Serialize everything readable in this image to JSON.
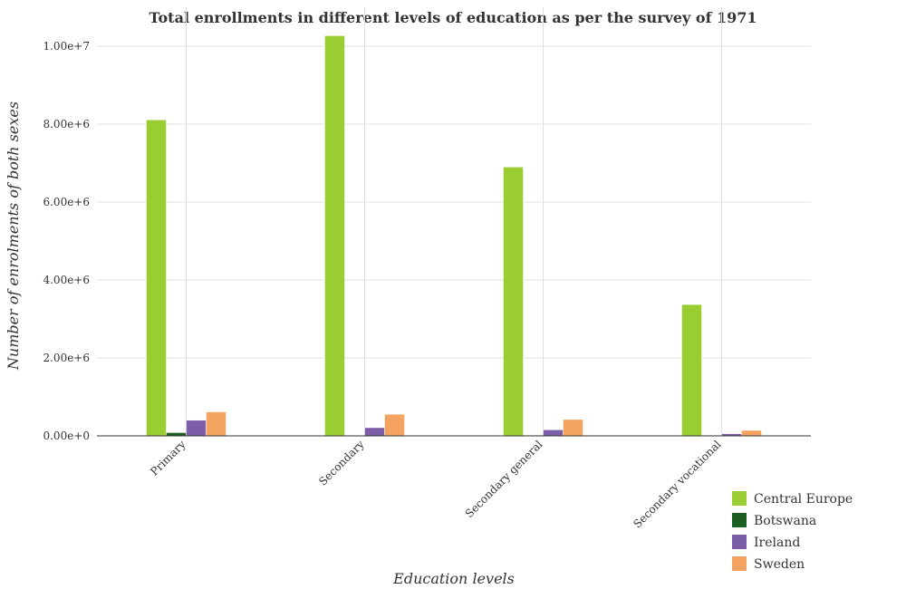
{
  "chart_data": {
    "type": "bar",
    "title": "Total enrollments in different levels of education as per the survey of 1971",
    "xlabel": "Education levels",
    "ylabel": "Number of enrolments of both sexes",
    "categories": [
      "Primary",
      "Secondary",
      "Secondary general",
      "Secondary vocational"
    ],
    "yticks": [
      0,
      2000000,
      4000000,
      6000000,
      8000000,
      10000000
    ],
    "ytick_labels": [
      "0.00e+0",
      "2.00e+6",
      "4.00e+6",
      "6.00e+6",
      "8.00e+6",
      "1.00e+7"
    ],
    "ylim": [
      0,
      11000000
    ],
    "grid": true,
    "legend_position": "bottom-right",
    "series": [
      {
        "name": "Central Europe",
        "color": "#9acd32",
        "values": [
          8110000,
          10270000,
          6900000,
          3370000
        ]
      },
      {
        "name": "Botswana",
        "color": "#1b5e20",
        "values": [
          82000,
          10000,
          9000,
          1500
        ]
      },
      {
        "name": "Ireland",
        "color": "#7b5ea7",
        "values": [
          400000,
          210000,
          155000,
          55000
        ]
      },
      {
        "name": "Sweden",
        "color": "#f4a460",
        "values": [
          615000,
          555000,
          420000,
          140000
        ]
      }
    ]
  }
}
